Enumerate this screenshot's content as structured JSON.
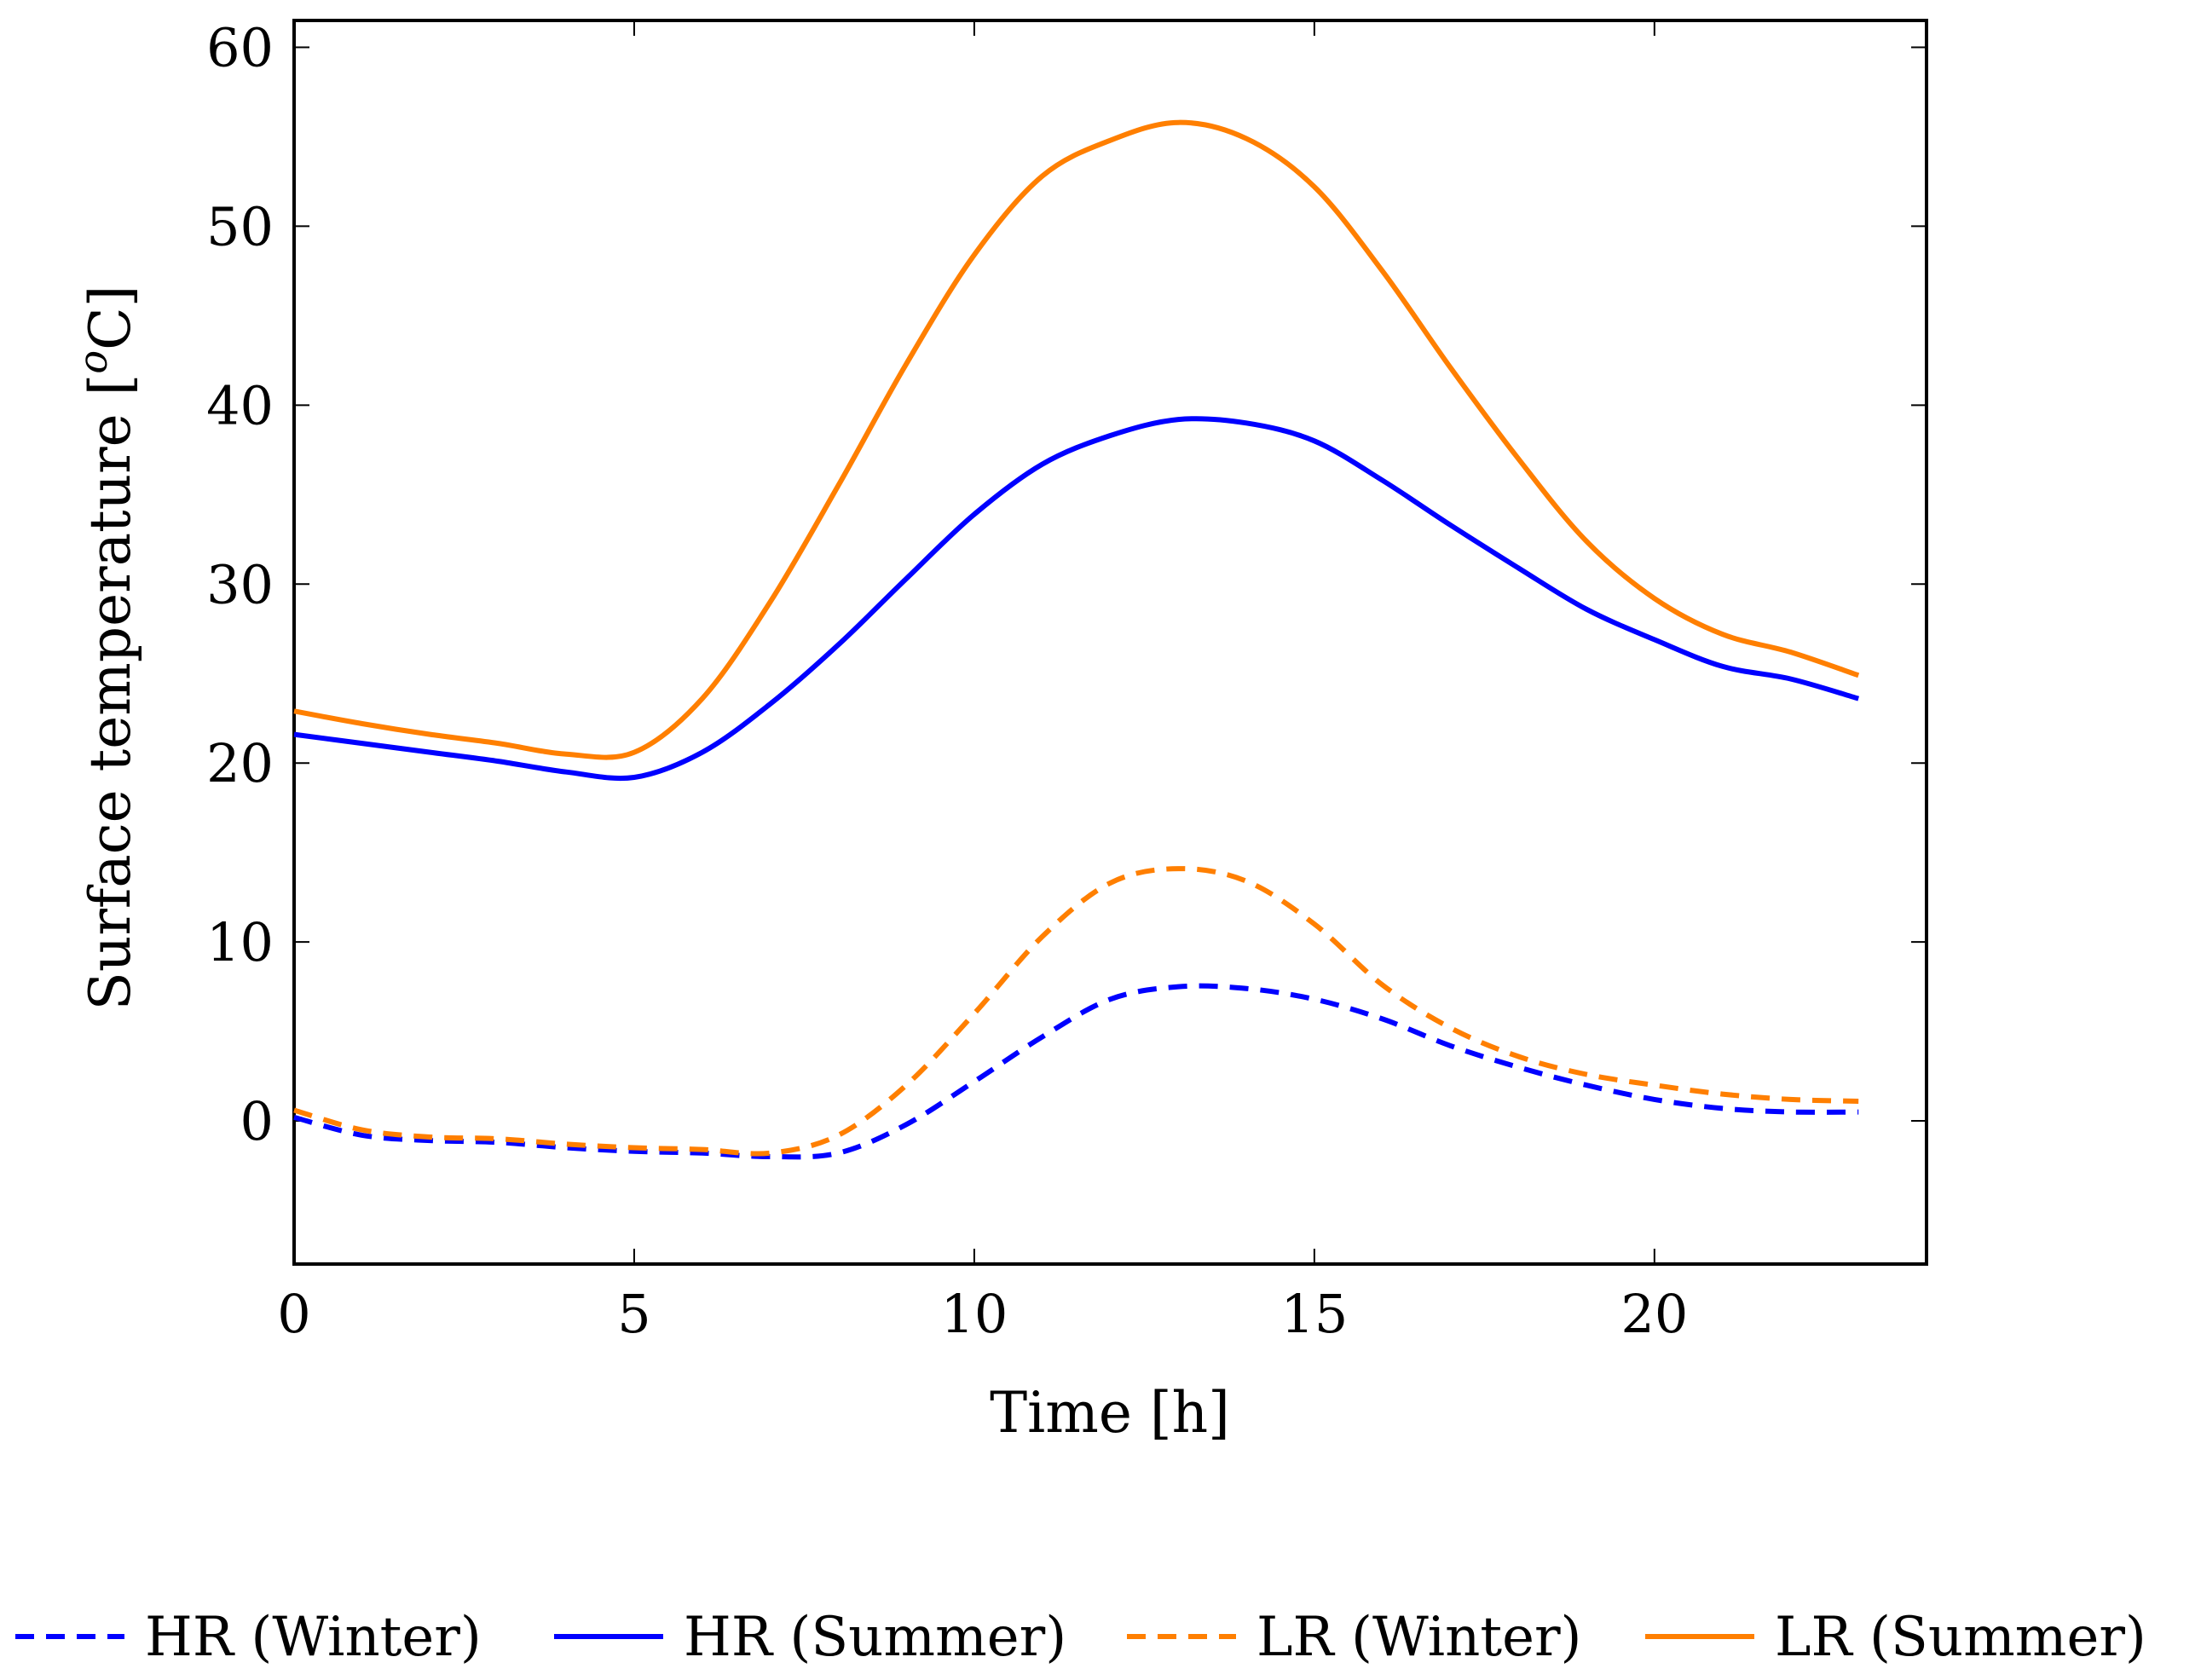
{
  "chart_data": {
    "type": "line",
    "title": "",
    "xlabel": "Time [h]",
    "ylabel": "Surface temperature [",
    "ylabel_sup": "o",
    "ylabel_unit": "C]",
    "xlim": [
      0,
      24
    ],
    "ylim": [
      -8,
      61.5
    ],
    "xticks": [
      0,
      5,
      10,
      15,
      20
    ],
    "yticks": [
      0,
      10,
      20,
      30,
      40,
      50,
      60
    ],
    "grid": false,
    "legend_position": "bottom",
    "series": [
      {
        "name": "HR (Winter)",
        "color": "#0000ff",
        "dashed": true,
        "x": [
          0,
          1,
          2,
          3,
          4,
          5,
          6,
          7,
          8,
          9,
          10,
          11,
          12,
          13,
          14,
          15,
          16,
          17,
          18,
          19,
          20,
          21,
          22,
          23
        ],
        "values": [
          0.2,
          -0.8,
          -1.1,
          -1.2,
          -1.5,
          -1.7,
          -1.8,
          -2.0,
          -1.8,
          -0.2,
          2.2,
          4.7,
          6.8,
          7.5,
          7.4,
          6.8,
          5.7,
          4.2,
          3.0,
          2.0,
          1.2,
          0.7,
          0.5,
          0.5
        ]
      },
      {
        "name": "HR (Summer)",
        "color": "#0000ff",
        "dashed": false,
        "x": [
          0,
          1,
          2,
          3,
          4,
          5,
          6,
          7,
          8,
          9,
          10,
          11,
          12,
          13,
          14,
          15,
          16,
          17,
          18,
          19,
          20,
          21,
          22,
          23
        ],
        "values": [
          21.6,
          21.1,
          20.6,
          20.1,
          19.5,
          19.2,
          20.6,
          23.3,
          26.6,
          30.3,
          33.9,
          36.7,
          38.3,
          39.2,
          39.0,
          38.0,
          35.8,
          33.3,
          30.9,
          28.6,
          26.9,
          25.4,
          24.7,
          23.6
        ]
      },
      {
        "name": "LR (Winter)",
        "color": "#ff7f00",
        "dashed": true,
        "x": [
          0,
          1,
          2,
          3,
          4,
          5,
          6,
          7,
          8,
          9,
          10,
          11,
          12,
          13,
          14,
          15,
          16,
          17,
          18,
          19,
          20,
          21,
          22,
          23
        ],
        "values": [
          0.6,
          -0.5,
          -0.9,
          -1.0,
          -1.3,
          -1.5,
          -1.6,
          -1.8,
          -0.8,
          2.0,
          6.0,
          10.3,
          13.3,
          14.1,
          13.4,
          11.0,
          7.6,
          5.2,
          3.6,
          2.6,
          2.0,
          1.5,
          1.2,
          1.1
        ]
      },
      {
        "name": "LR (Summer)",
        "color": "#ff7f00",
        "dashed": false,
        "x": [
          0,
          1,
          2,
          3,
          4,
          5,
          6,
          7,
          8,
          9,
          10,
          11,
          12,
          13,
          14,
          15,
          16,
          17,
          18,
          19,
          20,
          21,
          22,
          23
        ],
        "values": [
          22.9,
          22.2,
          21.6,
          21.1,
          20.5,
          20.6,
          23.6,
          29.0,
          35.5,
          42.3,
          48.4,
          52.8,
          54.8,
          55.8,
          54.9,
          52.2,
          47.5,
          42.1,
          37.0,
          32.4,
          29.2,
          27.2,
          26.2,
          24.9
        ]
      }
    ]
  }
}
